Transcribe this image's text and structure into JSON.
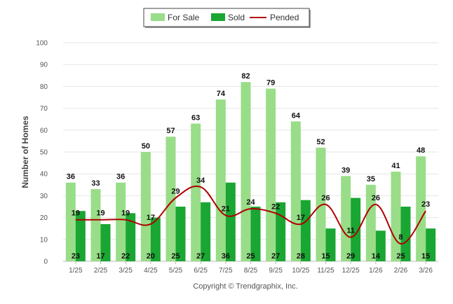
{
  "chart_data": {
    "type": "bar",
    "title": "",
    "xlabel": "",
    "ylabel": "Number of Homes",
    "ylim": [
      0,
      100
    ],
    "ytick_step": 10,
    "grid": true,
    "legend_position": "top-center",
    "categories": [
      "1/25",
      "2/25",
      "3/25",
      "4/25",
      "5/25",
      "6/25",
      "7/25",
      "8/25",
      "9/25",
      "10/25",
      "11/25",
      "12/25",
      "1/26",
      "2/26",
      "3/26"
    ],
    "series": [
      {
        "name": "For Sale",
        "type": "bar",
        "color": "#99dd88",
        "values": [
          36,
          33,
          36,
          50,
          57,
          63,
          74,
          82,
          79,
          64,
          52,
          39,
          35,
          41,
          48
        ]
      },
      {
        "name": "Sold",
        "type": "bar",
        "color": "#1aa632",
        "values": [
          23,
          17,
          22,
          20,
          25,
          27,
          36,
          25,
          27,
          28,
          15,
          29,
          14,
          25,
          15
        ]
      },
      {
        "name": "Pended",
        "type": "line",
        "color": "#b00000",
        "values": [
          19,
          19,
          19,
          17,
          29,
          34,
          21,
          24,
          22,
          17,
          26,
          11,
          26,
          8,
          23
        ]
      }
    ],
    "footer": "Copyright © Trendgraphix, Inc."
  }
}
